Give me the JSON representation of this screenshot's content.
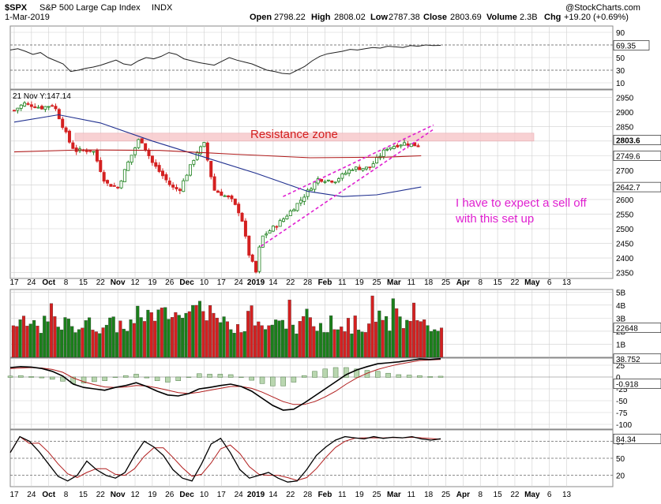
{
  "header": {
    "symbol": "$SPX",
    "name": "S&P 500 Large Cap Index",
    "exchange": "INDX",
    "date": "1-Mar-2019",
    "watermark": "@StockCharts.com",
    "ohlc": {
      "open_label": "Open",
      "open": "2798.22",
      "high_label": "High",
      "high": "2808.02",
      "low_label": "Low",
      "low": "2787.38",
      "close_label": "Close",
      "close": "2803.69",
      "volume_label": "Volume",
      "volume": "2.3B",
      "chg_label": "Chg",
      "chg": "+19.20 (+0.69%)"
    }
  },
  "colors": {
    "up": "#1a7f1a",
    "down": "#d42020",
    "ma50": "#1f2f8f",
    "ma200": "#b01c1c",
    "annotation": "#e020d0",
    "resistance_fill": "#f7c9cc",
    "resistance_text": "#d42020",
    "panel_bg": "#ffffff",
    "grid": "#cfcfcf"
  },
  "rsi_panel": {
    "ticks": [
      "90",
      "70",
      "50",
      "30",
      "10"
    ],
    "last_value": "69.35"
  },
  "price_panel": {
    "annotation_note": "21 Nov Y:147.14",
    "resistance_label": "Resistance zone",
    "comment_line1": "I have to expect a sell off",
    "comment_line2": "with this set up",
    "y_ticks": [
      "2950",
      "2900",
      "2850",
      "2800",
      "2750",
      "2700",
      "2650",
      "2600",
      "2550",
      "2500",
      "2450",
      "2400",
      "2350"
    ],
    "close_tag": "2803.6",
    "ma200_tag": "2749.6",
    "ma50_tag": "2642.7"
  },
  "volume_panel": {
    "ticks": [
      "5B",
      "4B",
      "3B",
      "2B",
      "1B"
    ],
    "last_tag": "22648"
  },
  "macd_panel": {
    "ticks": [
      "25",
      "0",
      "-25",
      "-50",
      "-75",
      "-100"
    ],
    "macd_tag": "38.752",
    "hist_tag": "-0.918"
  },
  "stoch_panel": {
    "ticks": [
      "80",
      "50",
      "20"
    ],
    "last_tag": "84.34"
  },
  "x_axis": {
    "labels": [
      {
        "text": "17",
        "bold": false
      },
      {
        "text": "24",
        "bold": false
      },
      {
        "text": "Oct",
        "bold": true
      },
      {
        "text": "8",
        "bold": false
      },
      {
        "text": "15",
        "bold": false
      },
      {
        "text": "22",
        "bold": false
      },
      {
        "text": "Nov",
        "bold": true
      },
      {
        "text": "12",
        "bold": false
      },
      {
        "text": "19",
        "bold": false
      },
      {
        "text": "26",
        "bold": false
      },
      {
        "text": "Dec",
        "bold": true
      },
      {
        "text": "10",
        "bold": false
      },
      {
        "text": "17",
        "bold": false
      },
      {
        "text": "24",
        "bold": false
      },
      {
        "text": "2019",
        "bold": true
      },
      {
        "text": "14",
        "bold": false
      },
      {
        "text": "22",
        "bold": false
      },
      {
        "text": "28",
        "bold": false
      },
      {
        "text": "Feb",
        "bold": true
      },
      {
        "text": "11",
        "bold": false
      },
      {
        "text": "19",
        "bold": false
      },
      {
        "text": "25",
        "bold": false
      },
      {
        "text": "Mar",
        "bold": true
      },
      {
        "text": "11",
        "bold": false
      },
      {
        "text": "18",
        "bold": false
      },
      {
        "text": "25",
        "bold": false
      },
      {
        "text": "Apr",
        "bold": true
      },
      {
        "text": "8",
        "bold": false
      },
      {
        "text": "15",
        "bold": false
      },
      {
        "text": "22",
        "bold": false
      },
      {
        "text": "May",
        "bold": true
      },
      {
        "text": "6",
        "bold": false
      },
      {
        "text": "13",
        "bold": false
      }
    ]
  },
  "chart_data": {
    "type": "line",
    "title": "$SPX S&P 500 Large Cap Index INDX",
    "ylim": [
      2330,
      2975
    ],
    "x_range": [
      "2018-09-17",
      "2019-05-13"
    ],
    "close_path": [
      [
        "2018-09-17",
        2905
      ],
      [
        "2018-09-21",
        2929
      ],
      [
        "2018-09-28",
        2914
      ],
      [
        "2018-10-03",
        2925
      ],
      [
        "2018-10-10",
        2785
      ],
      [
        "2018-10-12",
        2767
      ],
      [
        "2018-10-19",
        2768
      ],
      [
        "2018-10-24",
        2656
      ],
      [
        "2018-10-29",
        2641
      ],
      [
        "2018-11-02",
        2723
      ],
      [
        "2018-11-07",
        2813
      ],
      [
        "2018-11-12",
        2726
      ],
      [
        "2018-11-20",
        2641
      ],
      [
        "2018-11-23",
        2633
      ],
      [
        "2018-11-30",
        2760
      ],
      [
        "2018-12-03",
        2790
      ],
      [
        "2018-12-07",
        2633
      ],
      [
        "2018-12-14",
        2600
      ],
      [
        "2018-12-18",
        2546
      ],
      [
        "2018-12-21",
        2417
      ],
      [
        "2018-12-24",
        2351
      ],
      [
        "2018-12-26",
        2468
      ],
      [
        "2019-01-04",
        2532
      ],
      [
        "2019-01-11",
        2596
      ],
      [
        "2019-01-18",
        2670
      ],
      [
        "2019-01-25",
        2664
      ],
      [
        "2019-02-01",
        2707
      ],
      [
        "2019-02-08",
        2708
      ],
      [
        "2019-02-15",
        2776
      ],
      [
        "2019-02-22",
        2793
      ],
      [
        "2019-02-28",
        2784
      ],
      [
        "2019-03-01",
        2803.69
      ]
    ],
    "ma50_path": [
      [
        "2018-09-17",
        2865
      ],
      [
        "2018-10-05",
        2890
      ],
      [
        "2018-10-22",
        2862
      ],
      [
        "2018-11-12",
        2800
      ],
      [
        "2018-12-03",
        2745
      ],
      [
        "2018-12-24",
        2690
      ],
      [
        "2019-01-14",
        2628
      ],
      [
        "2019-01-28",
        2610
      ],
      [
        "2019-02-11",
        2616
      ],
      [
        "2019-03-01",
        2642.7
      ]
    ],
    "ma200_path": [
      [
        "2018-09-17",
        2763
      ],
      [
        "2018-10-15",
        2770
      ],
      [
        "2018-11-15",
        2768
      ],
      [
        "2018-12-15",
        2755
      ],
      [
        "2019-01-15",
        2743
      ],
      [
        "2019-02-15",
        2745
      ],
      [
        "2019-03-01",
        2749.6
      ]
    ],
    "resistance_zone": [
      2800,
      2815
    ],
    "wedge_upper": [
      [
        "2019-01-04",
        2610
      ],
      [
        "2019-03-06",
        2855
      ]
    ],
    "wedge_lower": [
      [
        "2018-12-26",
        2440
      ],
      [
        "2019-03-06",
        2840
      ]
    ],
    "last_close": 2803.69
  }
}
